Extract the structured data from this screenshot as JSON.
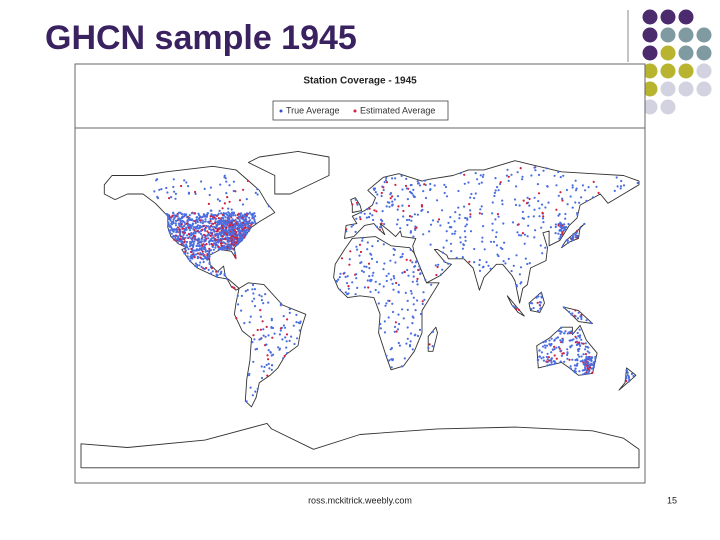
{
  "slide": {
    "title": "GHCN sample 1945",
    "footer": "ross.mckitrick.weebly.com",
    "page_number": "15"
  },
  "map": {
    "title": "Station Coverage - 1945",
    "legend": [
      "True Average",
      "Estimated Average"
    ]
  }
}
